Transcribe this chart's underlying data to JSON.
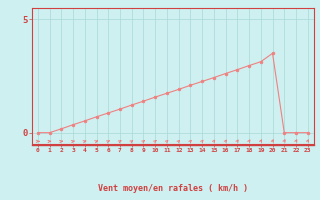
{
  "x": [
    0,
    1,
    2,
    3,
    4,
    5,
    6,
    7,
    8,
    9,
    10,
    11,
    12,
    13,
    14,
    15,
    16,
    17,
    18,
    19,
    20,
    21,
    22,
    23
  ],
  "y": [
    0.0,
    0.0,
    0.17,
    0.35,
    0.52,
    0.7,
    0.87,
    1.04,
    1.22,
    1.39,
    1.57,
    1.74,
    1.91,
    2.09,
    2.26,
    2.43,
    2.61,
    2.78,
    2.96,
    3.13,
    3.5,
    0.0,
    0.0,
    0.0
  ],
  "line_color": "#f08080",
  "marker_color": "#f08080",
  "bg_color": "#cef0f0",
  "grid_color": "#a8d8d8",
  "axis_color": "#d04040",
  "xlabel": "Vent moyen/en rafales ( km/h )",
  "ylim": [
    -0.5,
    5.5
  ],
  "xlim": [
    -0.5,
    23.5
  ],
  "yticks": [
    0,
    5
  ],
  "xticks": [
    0,
    1,
    2,
    3,
    4,
    5,
    6,
    7,
    8,
    9,
    10,
    11,
    12,
    13,
    14,
    15,
    16,
    17,
    18,
    19,
    20,
    21,
    22,
    23
  ],
  "figsize": [
    3.2,
    2.0
  ],
  "dpi": 100
}
